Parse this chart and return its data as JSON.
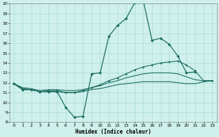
{
  "xlabel": "Humidex (Indice chaleur)",
  "bg_color": "#cff0eb",
  "grid_color": "#a8ddd7",
  "line_color": "#1a6b60",
  "xlim": [
    -0.5,
    23.5
  ],
  "ylim": [
    8,
    20
  ],
  "xticks": [
    0,
    1,
    2,
    3,
    4,
    5,
    6,
    7,
    8,
    9,
    10,
    11,
    12,
    13,
    14,
    15,
    16,
    17,
    18,
    19,
    20,
    21,
    22,
    23
  ],
  "yticks": [
    8,
    9,
    10,
    11,
    12,
    13,
    14,
    15,
    16,
    17,
    18,
    19,
    20
  ],
  "series": [
    {
      "x": [
        0,
        1,
        2,
        3,
        4,
        5,
        6,
        7,
        8,
        9,
        10,
        11,
        12,
        13,
        14,
        15,
        16,
        17,
        18,
        19,
        20,
        21
      ],
      "y": [
        11.9,
        11.3,
        11.3,
        11.1,
        11.1,
        11.1,
        9.5,
        8.5,
        8.6,
        12.9,
        13.0,
        16.7,
        17.8,
        18.5,
        20.1,
        20.3,
        16.3,
        16.5,
        15.9,
        14.7,
        13.0,
        13.1
      ],
      "marker": "D",
      "markersize": 2.0,
      "linewidth": 0.9
    },
    {
      "x": [
        0,
        1,
        2,
        3,
        4,
        5,
        6,
        7,
        8,
        9,
        10,
        11,
        12,
        13,
        14,
        15,
        16,
        17,
        18,
        19,
        20,
        21,
        22,
        23
      ],
      "y": [
        11.9,
        11.3,
        11.3,
        11.1,
        11.2,
        11.2,
        11.0,
        11.0,
        11.2,
        11.5,
        11.8,
        12.2,
        12.5,
        12.9,
        13.3,
        13.6,
        13.8,
        14.0,
        14.1,
        14.2,
        13.8,
        13.2,
        12.2,
        12.2
      ],
      "marker": "D",
      "markersize": 1.5,
      "linewidth": 0.8
    },
    {
      "x": [
        0,
        1,
        2,
        3,
        4,
        5,
        6,
        7,
        8,
        9,
        10,
        11,
        12,
        13,
        14,
        15,
        16,
        17,
        18,
        19,
        20,
        21,
        22,
        23
      ],
      "y": [
        11.9,
        11.5,
        11.4,
        11.2,
        11.3,
        11.3,
        11.2,
        11.2,
        11.3,
        11.5,
        11.7,
        12.0,
        12.2,
        12.5,
        12.7,
        12.9,
        13.0,
        13.0,
        13.0,
        12.9,
        12.6,
        12.3,
        12.2,
        12.2
      ],
      "marker": null,
      "markersize": 0,
      "linewidth": 0.8
    },
    {
      "x": [
        0,
        1,
        2,
        3,
        4,
        5,
        6,
        7,
        8,
        9,
        10,
        11,
        12,
        13,
        14,
        15,
        16,
        17,
        18,
        19,
        20,
        21,
        22,
        23
      ],
      "y": [
        11.9,
        11.4,
        11.3,
        11.1,
        11.1,
        11.1,
        11.0,
        11.0,
        11.1,
        11.3,
        11.4,
        11.6,
        11.8,
        11.9,
        12.0,
        12.1,
        12.1,
        12.1,
        12.1,
        12.0,
        11.9,
        11.9,
        12.1,
        12.2
      ],
      "marker": null,
      "markersize": 0,
      "linewidth": 0.8
    }
  ]
}
